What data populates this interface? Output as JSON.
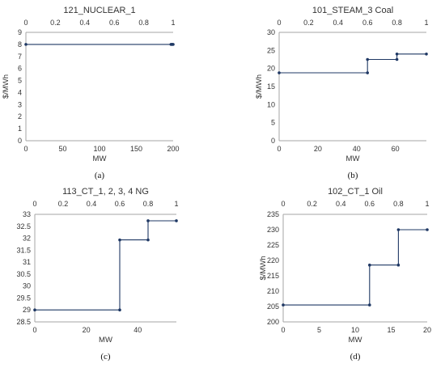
{
  "chart_data": [
    {
      "type": "line",
      "title": "121_NUCLEAR_1",
      "xlabel": "MW",
      "ylabel": "$/MWh",
      "caption": "(a)",
      "xlim": [
        0,
        200
      ],
      "ylim": [
        0,
        9
      ],
      "xticks": [
        0,
        50,
        100,
        150,
        200
      ],
      "yticks": [
        0,
        1,
        2,
        3,
        4,
        5,
        6,
        7,
        8,
        9
      ],
      "top_ticks": [
        "0",
        "0.2",
        "0.4",
        "0.6",
        "0.8",
        "1"
      ],
      "series": [
        {
          "x": [
            0,
            197,
            198,
            199,
            200
          ],
          "y": [
            8,
            8,
            8,
            8,
            8
          ]
        }
      ],
      "grid": false,
      "line_color": "#1f3864"
    },
    {
      "type": "line",
      "title": "101_STEAM_3 Coal",
      "xlabel": "MW",
      "ylabel": "$/MWh",
      "caption": "(b)",
      "xlim": [
        0,
        76
      ],
      "ylim": [
        0,
        30
      ],
      "xticks": [
        0,
        20,
        40,
        60
      ],
      "yticks": [
        0,
        5,
        10,
        15,
        20,
        25,
        30
      ],
      "top_ticks": [
        "0",
        "0.2",
        "0.4",
        "0.6",
        "0.8",
        "1"
      ],
      "series": [
        {
          "x": [
            0,
            45.6,
            45.6,
            60.8,
            60.8,
            76
          ],
          "y": [
            18.8,
            18.8,
            22.5,
            22.5,
            24,
            24
          ]
        }
      ],
      "grid": false,
      "line_color": "#1f3864"
    },
    {
      "type": "line",
      "title": "113_CT_1, 2, 3, 4 NG",
      "xlabel": "MW",
      "ylabel": "",
      "caption": "(c)",
      "xlim": [
        0,
        55
      ],
      "ylim": [
        28.5,
        33
      ],
      "xticks": [
        0,
        20,
        40
      ],
      "yticks": [
        28.5,
        29,
        29.5,
        30,
        30.5,
        31,
        31.5,
        32,
        32.5,
        33
      ],
      "top_ticks": [
        "0",
        "0.2",
        "0.4",
        "0.6",
        "0.8",
        "1"
      ],
      "series": [
        {
          "x": [
            0,
            33,
            33,
            44,
            44,
            55
          ],
          "y": [
            29,
            29,
            31.93,
            31.93,
            32.73,
            32.73
          ]
        }
      ],
      "grid": false,
      "line_color": "#1f3864"
    },
    {
      "type": "line",
      "title": "102_CT_1 Oil",
      "xlabel": "MW",
      "ylabel": "$/MWh",
      "caption": "(d)",
      "xlim": [
        0,
        20
      ],
      "ylim": [
        200,
        235
      ],
      "xticks": [
        0,
        5,
        10,
        15,
        20
      ],
      "yticks": [
        200,
        205,
        210,
        215,
        220,
        225,
        230,
        235
      ],
      "top_ticks": [
        "0",
        "0.2",
        "0.4",
        "0.6",
        "0.8",
        "1"
      ],
      "series": [
        {
          "x": [
            0,
            12,
            12,
            16,
            16,
            20
          ],
          "y": [
            205.5,
            205.5,
            218.5,
            218.5,
            230,
            230
          ]
        }
      ],
      "grid": false,
      "line_color": "#1f3864"
    }
  ]
}
